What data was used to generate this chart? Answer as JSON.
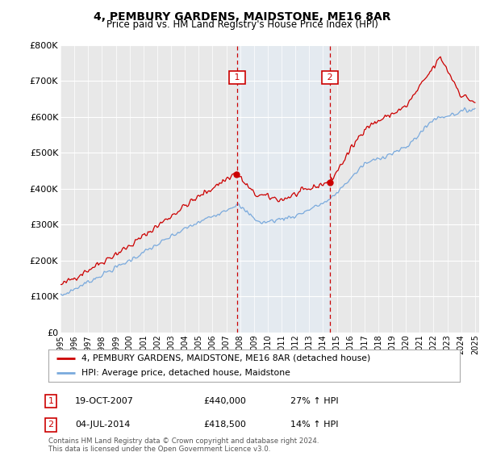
{
  "title": "4, PEMBURY GARDENS, MAIDSTONE, ME16 8AR",
  "subtitle": "Price paid vs. HM Land Registry's House Price Index (HPI)",
  "legend_line1": "4, PEMBURY GARDENS, MAIDSTONE, ME16 8AR (detached house)",
  "legend_line2": "HPI: Average price, detached house, Maidstone",
  "sale1_label": "1",
  "sale1_date": "19-OCT-2007",
  "sale1_price": "£440,000",
  "sale1_hpi": "27% ↑ HPI",
  "sale1_year": 2007.79,
  "sale1_price_val": 440000,
  "sale2_label": "2",
  "sale2_date": "04-JUL-2014",
  "sale2_price": "£418,500",
  "sale2_hpi": "14% ↑ HPI",
  "sale2_year": 2014.5,
  "sale2_price_val": 418500,
  "footer": "Contains HM Land Registry data © Crown copyright and database right 2024.\nThis data is licensed under the Open Government Licence v3.0.",
  "ylim": [
    0,
    800000
  ],
  "xlim_start": 1995.0,
  "xlim_end": 2025.3,
  "property_color": "#cc0000",
  "hpi_color": "#7aaadd",
  "shade_color": "#ddeeff",
  "vline_color": "#cc0000",
  "background_color": "#ffffff",
  "plot_bg_color": "#e8e8e8"
}
